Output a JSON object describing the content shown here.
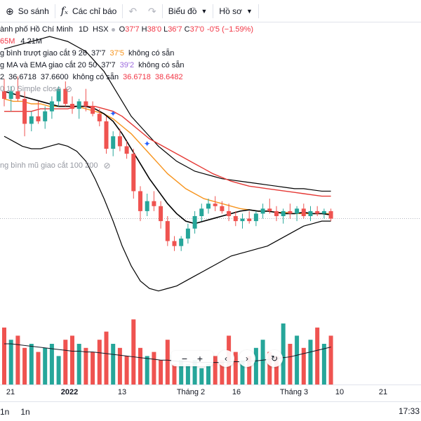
{
  "toolbar": {
    "compare_label": "So sánh",
    "indicators_label": "Các chỉ báo",
    "chart_label": "Biểu đồ",
    "profile_label": "Hồ sơ"
  },
  "legend": {
    "symbol_title": "ành phố Hồ Chí Minh",
    "interval": "1D",
    "exchange": "HSX",
    "ohlc": {
      "o_label": "O",
      "o": "37'7",
      "h_label": "H",
      "h": "38'0",
      "l_label": "L",
      "l": "36'7",
      "c_label": "C",
      "c": "37'0",
      "change": "-0'5 (−1.59%)"
    },
    "volume_row": {
      "a": "65M",
      "b": "4.21M"
    },
    "row3": {
      "label": "g bình trượt giao cắt 9 26",
      "v1": "37'7",
      "v2": "37'5",
      "na": "không có sẵn"
    },
    "row4": {
      "label": "g MA và EMA giao cắt 20 50",
      "v1": "37'7",
      "v2": "39'2",
      "na": "không có sẵn"
    },
    "row5": {
      "prefix": "2",
      "v1": "36.6718",
      "v2": "37.6600",
      "na": "không có sẵn",
      "v3": "36.6718",
      "v4": "38.6482"
    },
    "row6": {
      "label": "0 10 Simple close"
    },
    "row7": {
      "label": "ng bình mũ giao cắt 100 200"
    }
  },
  "time_axis": {
    "ticks": [
      {
        "label": "21",
        "bold": false
      },
      {
        "label": "2022",
        "bold": true
      },
      {
        "label": "13",
        "bold": false
      },
      {
        "label": "Tháng 2",
        "bold": false
      },
      {
        "label": "16",
        "bold": false
      },
      {
        "label": "Tháng 3",
        "bold": false
      },
      {
        "label": "10",
        "bold": false
      },
      {
        "label": "21",
        "bold": false
      }
    ]
  },
  "bottom_bar": {
    "range1": "1n",
    "range2": "1n",
    "time": "17:33"
  },
  "colors": {
    "up": "#26a69a",
    "down": "#ef5350",
    "bb_line": "#000000",
    "ema_orange": "#f7941d",
    "ema_red": "#e53935",
    "volume_ma": "#131722",
    "blue_marker": "#2962ff"
  },
  "chart_data": {
    "type": "candlestick",
    "price_range": [
      33.0,
      42.0
    ],
    "candles": [
      {
        "o": 39.8,
        "h": 40.3,
        "l": 39.2,
        "c": 39.5
      },
      {
        "o": 39.5,
        "h": 40.0,
        "l": 39.0,
        "c": 39.8
      },
      {
        "o": 39.8,
        "h": 40.4,
        "l": 39.4,
        "c": 39.5
      },
      {
        "o": 39.5,
        "h": 39.8,
        "l": 38.0,
        "c": 38.5
      },
      {
        "o": 38.5,
        "h": 39.0,
        "l": 38.2,
        "c": 38.8
      },
      {
        "o": 38.8,
        "h": 39.4,
        "l": 38.5,
        "c": 38.6
      },
      {
        "o": 38.6,
        "h": 39.2,
        "l": 38.3,
        "c": 39.0
      },
      {
        "o": 39.0,
        "h": 39.6,
        "l": 38.7,
        "c": 39.4
      },
      {
        "o": 39.4,
        "h": 40.0,
        "l": 39.2,
        "c": 39.9
      },
      {
        "o": 39.9,
        "h": 40.2,
        "l": 39.2,
        "c": 39.3
      },
      {
        "o": 39.3,
        "h": 39.6,
        "l": 38.9,
        "c": 39.1
      },
      {
        "o": 39.1,
        "h": 39.5,
        "l": 38.7,
        "c": 39.4
      },
      {
        "o": 39.4,
        "h": 39.9,
        "l": 39.0,
        "c": 39.2
      },
      {
        "o": 39.2,
        "h": 39.4,
        "l": 38.8,
        "c": 38.9
      },
      {
        "o": 38.9,
        "h": 39.1,
        "l": 38.4,
        "c": 38.6
      },
      {
        "o": 38.6,
        "h": 38.8,
        "l": 37.3,
        "c": 37.5
      },
      {
        "o": 37.5,
        "h": 38.2,
        "l": 37.2,
        "c": 38.0
      },
      {
        "o": 38.0,
        "h": 38.3,
        "l": 37.4,
        "c": 37.6
      },
      {
        "o": 37.6,
        "h": 37.8,
        "l": 37.1,
        "c": 37.3
      },
      {
        "o": 37.3,
        "h": 37.5,
        "l": 35.5,
        "c": 35.8
      },
      {
        "o": 35.8,
        "h": 36.0,
        "l": 34.6,
        "c": 35.0
      },
      {
        "o": 35.0,
        "h": 35.7,
        "l": 34.8,
        "c": 35.4
      },
      {
        "o": 35.4,
        "h": 35.8,
        "l": 35.0,
        "c": 35.2
      },
      {
        "o": 35.2,
        "h": 35.4,
        "l": 34.3,
        "c": 34.6
      },
      {
        "o": 34.6,
        "h": 34.8,
        "l": 33.6,
        "c": 33.8
      },
      {
        "o": 33.8,
        "h": 34.0,
        "l": 33.4,
        "c": 33.6
      },
      {
        "o": 33.6,
        "h": 34.0,
        "l": 33.4,
        "c": 33.9
      },
      {
        "o": 33.9,
        "h": 34.5,
        "l": 33.7,
        "c": 34.3
      },
      {
        "o": 34.3,
        "h": 35.0,
        "l": 34.1,
        "c": 34.8
      },
      {
        "o": 34.8,
        "h": 35.3,
        "l": 34.6,
        "c": 35.1
      },
      {
        "o": 35.1,
        "h": 35.5,
        "l": 34.9,
        "c": 35.3
      },
      {
        "o": 35.3,
        "h": 35.6,
        "l": 35.0,
        "c": 35.2
      },
      {
        "o": 35.2,
        "h": 35.4,
        "l": 34.9,
        "c": 35.0
      },
      {
        "o": 35.0,
        "h": 35.3,
        "l": 34.6,
        "c": 34.8
      },
      {
        "o": 34.8,
        "h": 35.0,
        "l": 34.4,
        "c": 34.6
      },
      {
        "o": 34.6,
        "h": 34.9,
        "l": 34.3,
        "c": 34.7
      },
      {
        "o": 34.7,
        "h": 35.0,
        "l": 34.5,
        "c": 34.6
      },
      {
        "o": 34.6,
        "h": 35.0,
        "l": 34.4,
        "c": 34.9
      },
      {
        "o": 34.9,
        "h": 35.3,
        "l": 34.7,
        "c": 35.1
      },
      {
        "o": 35.1,
        "h": 35.5,
        "l": 34.9,
        "c": 35.0
      },
      {
        "o": 35.0,
        "h": 35.2,
        "l": 34.6,
        "c": 34.8
      },
      {
        "o": 34.8,
        "h": 35.1,
        "l": 34.5,
        "c": 35.0
      },
      {
        "o": 35.0,
        "h": 35.3,
        "l": 34.7,
        "c": 34.9
      },
      {
        "o": 34.9,
        "h": 35.2,
        "l": 34.6,
        "c": 35.1
      },
      {
        "o": 35.1,
        "h": 35.3,
        "l": 34.7,
        "c": 34.8
      },
      {
        "o": 34.8,
        "h": 35.2,
        "l": 34.6,
        "c": 35.0
      },
      {
        "o": 35.0,
        "h": 35.2,
        "l": 34.8,
        "c": 34.9
      },
      {
        "o": 34.9,
        "h": 35.1,
        "l": 34.7,
        "c": 35.0
      },
      {
        "o": 35.0,
        "h": 35.1,
        "l": 34.6,
        "c": 34.7
      }
    ],
    "volume": [
      0.7,
      0.55,
      0.6,
      0.45,
      0.5,
      0.4,
      0.45,
      0.5,
      0.35,
      0.55,
      0.6,
      0.5,
      0.45,
      0.4,
      0.55,
      0.65,
      0.5,
      0.45,
      0.35,
      0.8,
      0.45,
      0.35,
      0.4,
      0.3,
      0.55,
      0.25,
      0.3,
      0.25,
      0.3,
      0.2,
      0.25,
      0.35,
      0.3,
      0.6,
      0.4,
      0.3,
      0.35,
      0.45,
      0.55,
      0.4,
      0.35,
      0.75,
      0.5,
      0.6,
      0.45,
      0.55,
      0.7,
      0.5,
      0.6
    ],
    "volume_ma": [
      0.5,
      0.5,
      0.49,
      0.48,
      0.47,
      0.46,
      0.45,
      0.44,
      0.43,
      0.42,
      0.41,
      0.41,
      0.4,
      0.4,
      0.39,
      0.38,
      0.37,
      0.36,
      0.35,
      0.34,
      0.33,
      0.32,
      0.31,
      0.3,
      0.3,
      0.29,
      0.28,
      0.28,
      0.27,
      0.27,
      0.27,
      0.27,
      0.27,
      0.28,
      0.28,
      0.28,
      0.29,
      0.29,
      0.3,
      0.31,
      0.32,
      0.33,
      0.34,
      0.36,
      0.38,
      0.4,
      0.42,
      0.44,
      0.46
    ],
    "bb_upper": [
      41.5,
      41.6,
      41.7,
      41.8,
      41.9,
      42.0,
      41.9,
      41.8,
      41.6,
      41.4,
      41.0,
      40.6,
      40.0,
      39.4,
      38.8,
      38.4,
      38.0,
      37.6,
      37.3,
      37.0,
      36.8,
      36.6,
      36.5,
      36.4,
      36.3,
      36.25,
      36.2,
      36.15,
      36.1,
      36.05,
      36.0,
      35.95,
      35.9,
      35.9,
      35.85,
      35.8,
      35.8
    ],
    "bb_lower": [
      38.0,
      37.8,
      37.6,
      37.5,
      37.5,
      37.6,
      37.7,
      37.6,
      37.4,
      37.0,
      36.3,
      35.5,
      34.6,
      33.6,
      32.8,
      32.2,
      31.9,
      31.8,
      31.9,
      32.0,
      32.2,
      32.4,
      32.6,
      32.8,
      33.0,
      33.2,
      33.3,
      33.4,
      33.5,
      33.6,
      33.8,
      34.0,
      34.2,
      34.4,
      34.5,
      34.6,
      34.6
    ],
    "ema_orange": [
      39.5,
      39.4,
      39.4,
      39.3,
      39.3,
      39.2,
      39.2,
      39.2,
      39.2,
      39.1,
      39.0,
      38.9,
      38.7,
      38.4,
      38.1,
      37.7,
      37.3,
      36.9,
      36.5,
      36.2,
      35.9,
      35.7,
      35.5,
      35.4,
      35.3,
      35.2,
      35.1,
      35.05,
      35.0,
      35.0,
      34.95,
      34.95,
      34.9,
      34.9,
      34.9,
      34.9,
      34.9
    ],
    "ema_red": [
      39.0,
      39.0,
      39.0,
      39.0,
      39.1,
      39.1,
      39.1,
      39.1,
      39.2,
      39.2,
      39.2,
      39.1,
      39.0,
      38.8,
      38.5,
      38.2,
      37.9,
      37.7,
      37.5,
      37.3,
      37.1,
      36.9,
      36.7,
      36.5,
      36.35,
      36.2,
      36.1,
      36.0,
      35.95,
      35.9,
      35.85,
      35.8,
      35.75,
      35.7,
      35.65,
      35.6,
      35.6
    ],
    "sma_black": [
      39.8,
      39.7,
      39.6,
      39.5,
      39.4,
      39.3,
      39.2,
      39.2,
      39.2,
      39.2,
      39.1,
      38.9,
      38.6,
      38.1,
      37.5,
      36.9,
      36.3,
      35.8,
      35.3,
      34.9,
      34.6,
      34.5,
      34.6,
      34.7,
      34.8,
      34.9,
      35.0,
      35.05,
      35.0,
      35.0,
      34.95,
      34.9,
      34.9,
      34.95,
      34.9,
      34.9,
      34.85
    ],
    "current_price_line": 34.7
  }
}
